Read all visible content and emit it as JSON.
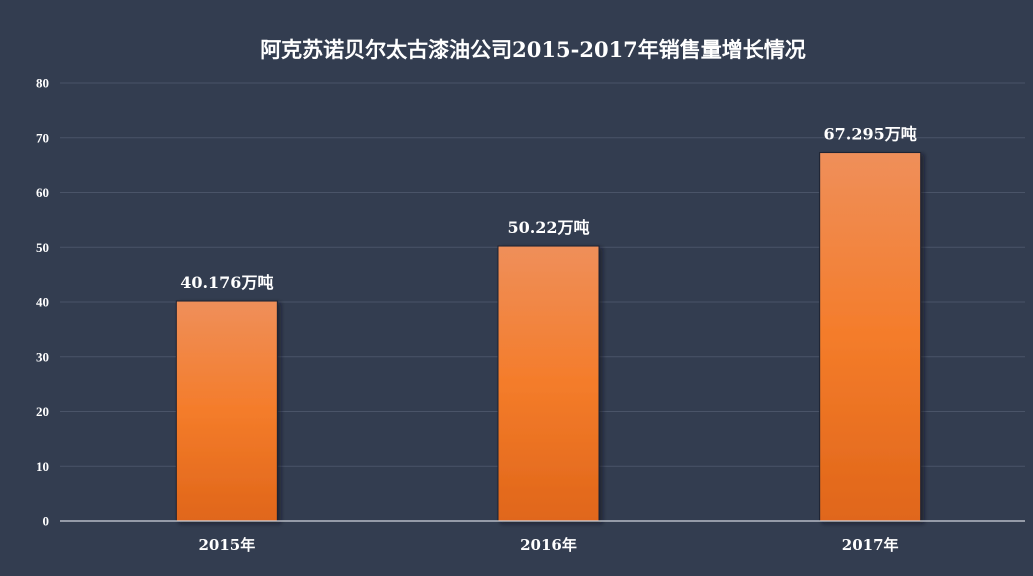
{
  "chart_data": {
    "type": "bar",
    "title": "阿克苏诺贝尔太古漆油公司2015-2017年销售量增长情况",
    "categories": [
      "2015年",
      "2016年",
      "2017年"
    ],
    "values": [
      40.176,
      50.22,
      67.295
    ],
    "data_labels": [
      "40.176万吨",
      "50.22万吨",
      "67.295万吨"
    ],
    "ylim": [
      0,
      80
    ],
    "yticks": [
      0,
      10,
      20,
      30,
      40,
      50,
      60,
      70,
      80
    ],
    "xlabel": "",
    "ylabel": "",
    "grid": true,
    "legend": "none"
  },
  "colors": {
    "background": "#333d50",
    "bar_top": "#ef8f5a",
    "bar_mid": "#f47c2a",
    "bar_bottom": "#e0661a",
    "bar_edge": "#1e2430",
    "grid": "#4a5468",
    "text": "#ffffff"
  }
}
